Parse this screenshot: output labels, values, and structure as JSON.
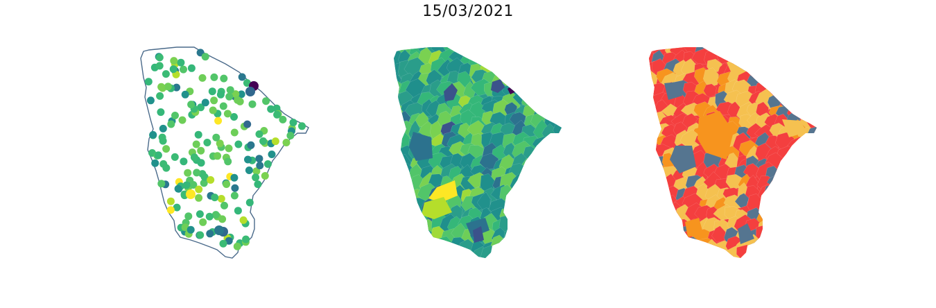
{
  "figure": {
    "title": "15/03/2021"
  },
  "panels": [
    {
      "name": "points-map",
      "style": "outline-with-points",
      "outline_color": "#4a6a8a"
    },
    {
      "name": "choropleth-continuous",
      "style": "choropleth",
      "palette": "viridis"
    },
    {
      "name": "choropleth-categorical",
      "style": "choropleth",
      "colors": [
        "#f5c150",
        "#f7941e",
        "#f43f3f",
        "#557590"
      ]
    }
  ]
}
